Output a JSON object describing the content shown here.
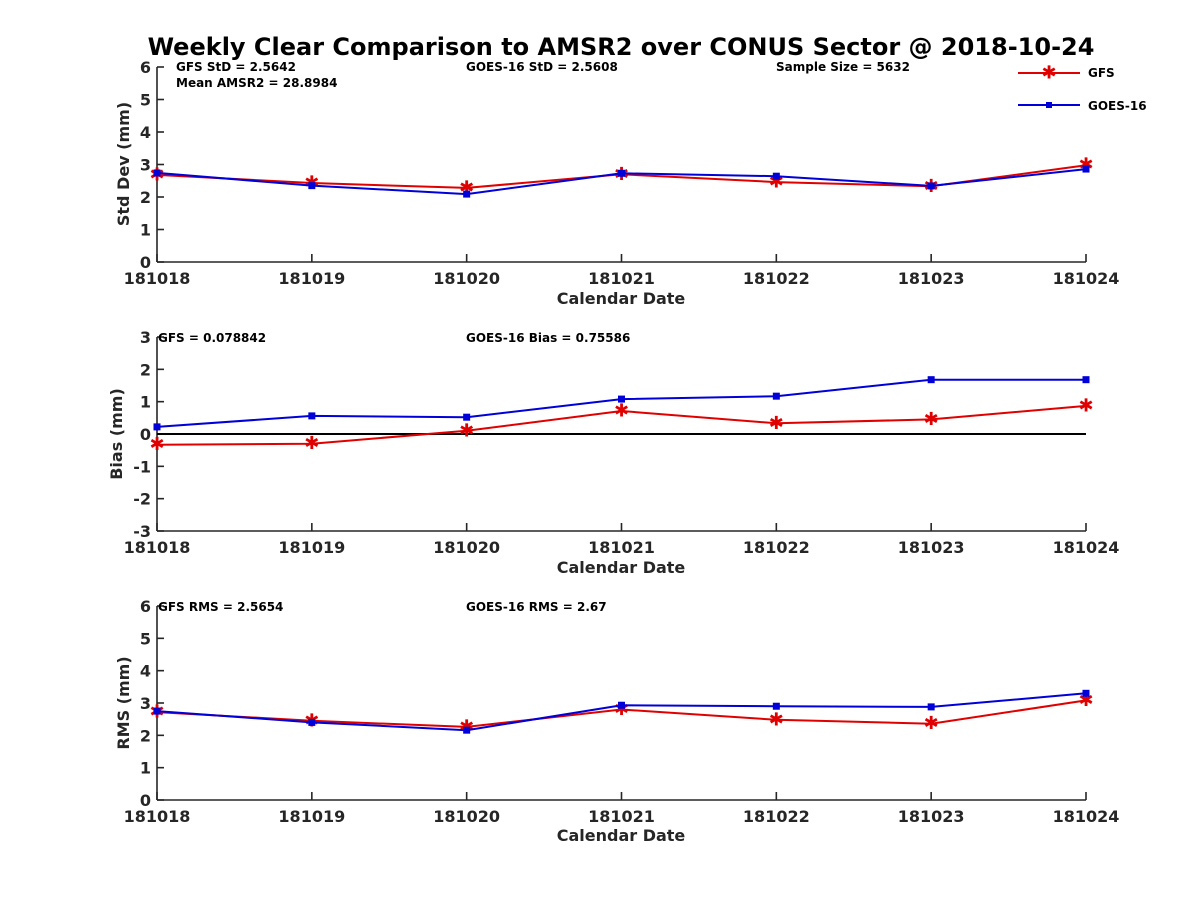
{
  "figure_title": "Weekly Clear Comparison to AMSR2 over CONUS Sector @ 2018-10-24",
  "colors": {
    "gfs": "#e00000",
    "goes": "#0000d8",
    "axis": "#262626"
  },
  "legend": {
    "placement": "top-right",
    "entries": [
      {
        "name": "GFS",
        "color": "#e00000",
        "marker": "asterisk"
      },
      {
        "name": "GOES-16",
        "color": "#0000d8",
        "marker": "square"
      }
    ]
  },
  "chart_data": [
    {
      "type": "line",
      "title": "",
      "xlabel": "Calendar Date",
      "ylabel": "Std Dev (mm)",
      "categories": [
        "181018",
        "181019",
        "181020",
        "181021",
        "181022",
        "181023",
        "181024"
      ],
      "yticks": [
        "0",
        "1",
        "2",
        "3",
        "4",
        "5",
        "6"
      ],
      "ylim": [
        0,
        6
      ],
      "zero_line": false,
      "annotations": [
        "GFS StD = 2.5642",
        "Mean AMSR2 = 28.8984",
        "GOES-16 StD = 2.5608",
        "Sample Size = 5632"
      ],
      "series": [
        {
          "name": "GFS",
          "values": [
            2.68,
            2.43,
            2.28,
            2.7,
            2.46,
            2.33,
            2.98
          ]
        },
        {
          "name": "GOES-16",
          "values": [
            2.74,
            2.35,
            2.09,
            2.73,
            2.64,
            2.34,
            2.86
          ]
        }
      ]
    },
    {
      "type": "line",
      "title": "",
      "xlabel": "Calendar Date",
      "ylabel": "Bias (mm)",
      "categories": [
        "181018",
        "181019",
        "181020",
        "181021",
        "181022",
        "181023",
        "181024"
      ],
      "yticks": [
        "-3",
        "-2",
        "-1",
        "0",
        "1",
        "2",
        "3"
      ],
      "ylim": [
        -3,
        3
      ],
      "zero_line": true,
      "annotations": [
        "GFS = 0.078842",
        "GOES-16 Bias  = 0.75586"
      ],
      "series": [
        {
          "name": "GFS",
          "values": [
            -0.33,
            -0.3,
            0.1,
            0.71,
            0.33,
            0.45,
            0.87
          ]
        },
        {
          "name": "GOES-16",
          "values": [
            0.22,
            0.56,
            0.52,
            1.08,
            1.17,
            1.68,
            1.68
          ]
        }
      ]
    },
    {
      "type": "line",
      "title": "",
      "xlabel": "Calendar Date",
      "ylabel": "RMS (mm)",
      "categories": [
        "181018",
        "181019",
        "181020",
        "181021",
        "181022",
        "181023",
        "181024"
      ],
      "yticks": [
        "0",
        "1",
        "2",
        "3",
        "4",
        "5",
        "6"
      ],
      "ylim": [
        0,
        6
      ],
      "zero_line": false,
      "annotations": [
        "GFS RMS = 2.5654",
        "GOES-16 RMS = 2.67"
      ],
      "series": [
        {
          "name": "GFS",
          "values": [
            2.72,
            2.45,
            2.26,
            2.8,
            2.48,
            2.36,
            3.08
          ]
        },
        {
          "name": "GOES-16",
          "values": [
            2.75,
            2.4,
            2.16,
            2.93,
            2.9,
            2.88,
            3.3
          ]
        }
      ]
    }
  ]
}
